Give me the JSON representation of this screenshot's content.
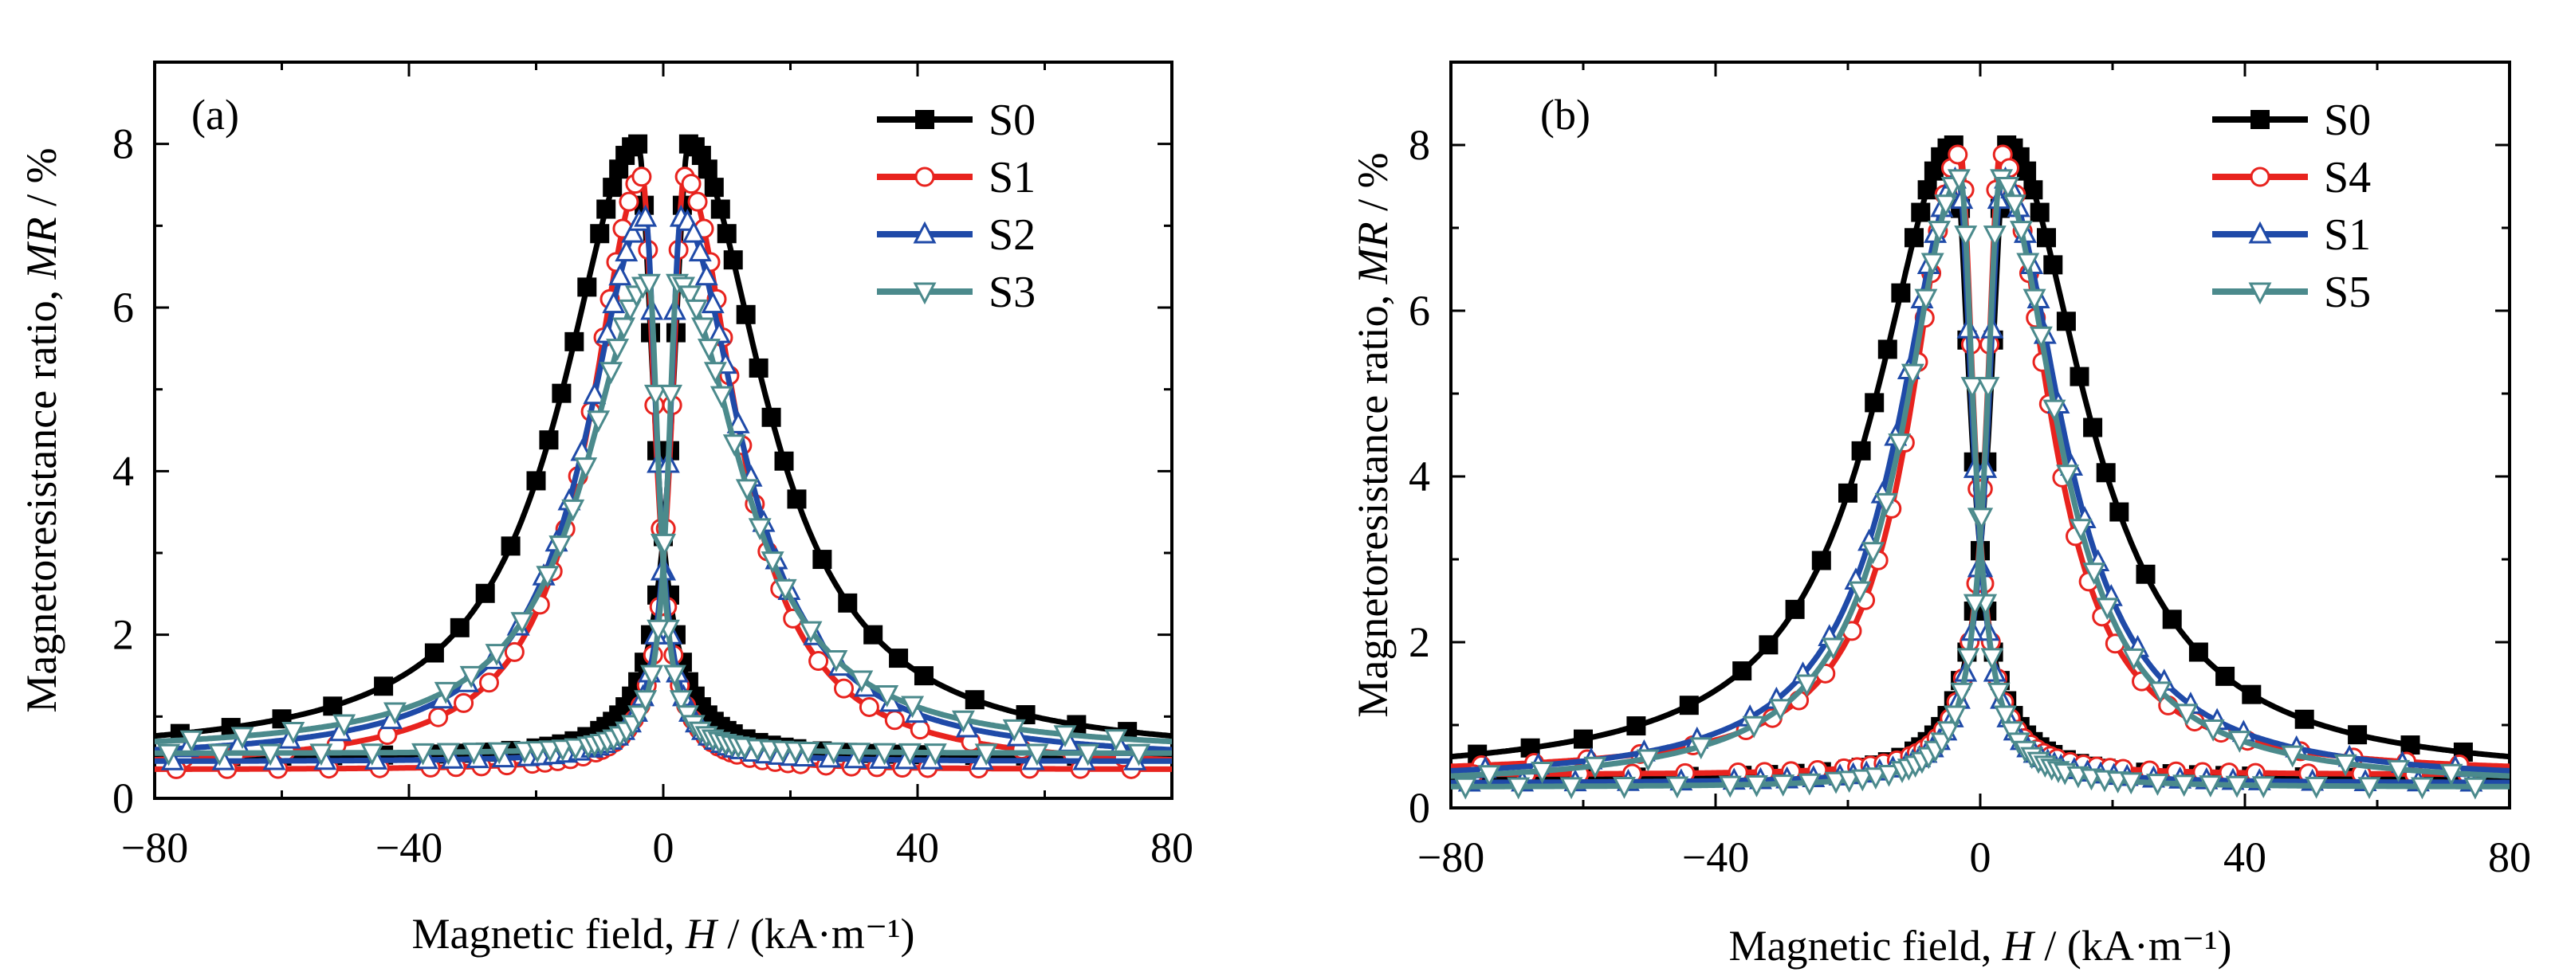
{
  "chart_data": [
    {
      "type": "line",
      "panel_label": "(a)",
      "xlabel": {
        "prefix": "Magnetic field, ",
        "symbol": "H",
        "suffix": " / (kA·m⁻¹)"
      },
      "ylabel": {
        "prefix": "Magnetoresistance ratio, ",
        "symbol": "MR",
        "suffix": " / %"
      },
      "xlim": [
        -80,
        80
      ],
      "ylim": [
        0,
        9
      ],
      "xticks": [
        -80,
        -40,
        0,
        40,
        80
      ],
      "xtick_labels": [
        "−80",
        "−40",
        "0",
        "40",
        "80"
      ],
      "yticks": [
        0,
        2,
        4,
        6,
        8
      ],
      "ytick_labels": [
        "0",
        "2",
        "4",
        "6",
        "8"
      ],
      "grid": false,
      "legend_position": "top-right",
      "series": [
        {
          "name": "S0",
          "color": "#000000",
          "marker": "square-filled",
          "peak": 8.0,
          "base": 0.5,
          "hc": 4.0,
          "gamma_out": 14.5,
          "gamma_in": 3.0
        },
        {
          "name": "S1",
          "color": "#e8231e",
          "marker": "circle-open",
          "peak": 7.6,
          "base": 0.35,
          "hc": 3.3,
          "gamma_out": 10.0,
          "gamma_in": 2.4
        },
        {
          "name": "S2",
          "color": "#1f4aa8",
          "marker": "triangle-up-open",
          "peak": 7.1,
          "base": 0.45,
          "hc": 2.8,
          "gamma_out": 11.5,
          "gamma_in": 2.2
        },
        {
          "name": "S3",
          "color": "#4b8a8c",
          "marker": "triangle-down-open",
          "peak": 6.3,
          "base": 0.55,
          "hc": 2.2,
          "gamma_out": 12.5,
          "gamma_in": 1.8
        }
      ]
    },
    {
      "type": "line",
      "panel_label": "(b)",
      "xlabel": {
        "prefix": "Magnetic field, ",
        "symbol": "H",
        "suffix": " / (kA·m⁻¹)"
      },
      "ylabel": {
        "prefix": "Magnetoresistance ratio, ",
        "symbol": "MR",
        "suffix": " / %"
      },
      "xlim": [
        -80,
        80
      ],
      "ylim": [
        0,
        9
      ],
      "xticks": [
        -80,
        -40,
        0,
        40,
        80
      ],
      "xtick_labels": [
        "−80",
        "−40",
        "0",
        "40",
        "80"
      ],
      "yticks": [
        0,
        2,
        4,
        6,
        8
      ],
      "ytick_labels": [
        "0",
        "2",
        "4",
        "6",
        "8"
      ],
      "grid": false,
      "legend_position": "top-right",
      "series": [
        {
          "name": "S0",
          "color": "#000000",
          "marker": "square-filled",
          "peak": 8.0,
          "base": 0.35,
          "hc": 4.0,
          "gamma_out": 14.5,
          "gamma_in": 3.0
        },
        {
          "name": "S4",
          "color": "#e8231e",
          "marker": "circle-open",
          "peak": 7.9,
          "base": 0.4,
          "hc": 3.0,
          "gamma_out": 9.0,
          "gamma_in": 2.4
        },
        {
          "name": "S1",
          "color": "#1f4aa8",
          "marker": "triangle-up-open",
          "peak": 7.6,
          "base": 0.3,
          "hc": 3.3,
          "gamma_out": 11.0,
          "gamma_in": 2.6
        },
        {
          "name": "S5",
          "color": "#4b8a8c",
          "marker": "triangle-down-open",
          "peak": 7.6,
          "base": 0.25,
          "hc": 3.0,
          "gamma_out": 10.5,
          "gamma_in": 2.5
        }
      ]
    }
  ]
}
